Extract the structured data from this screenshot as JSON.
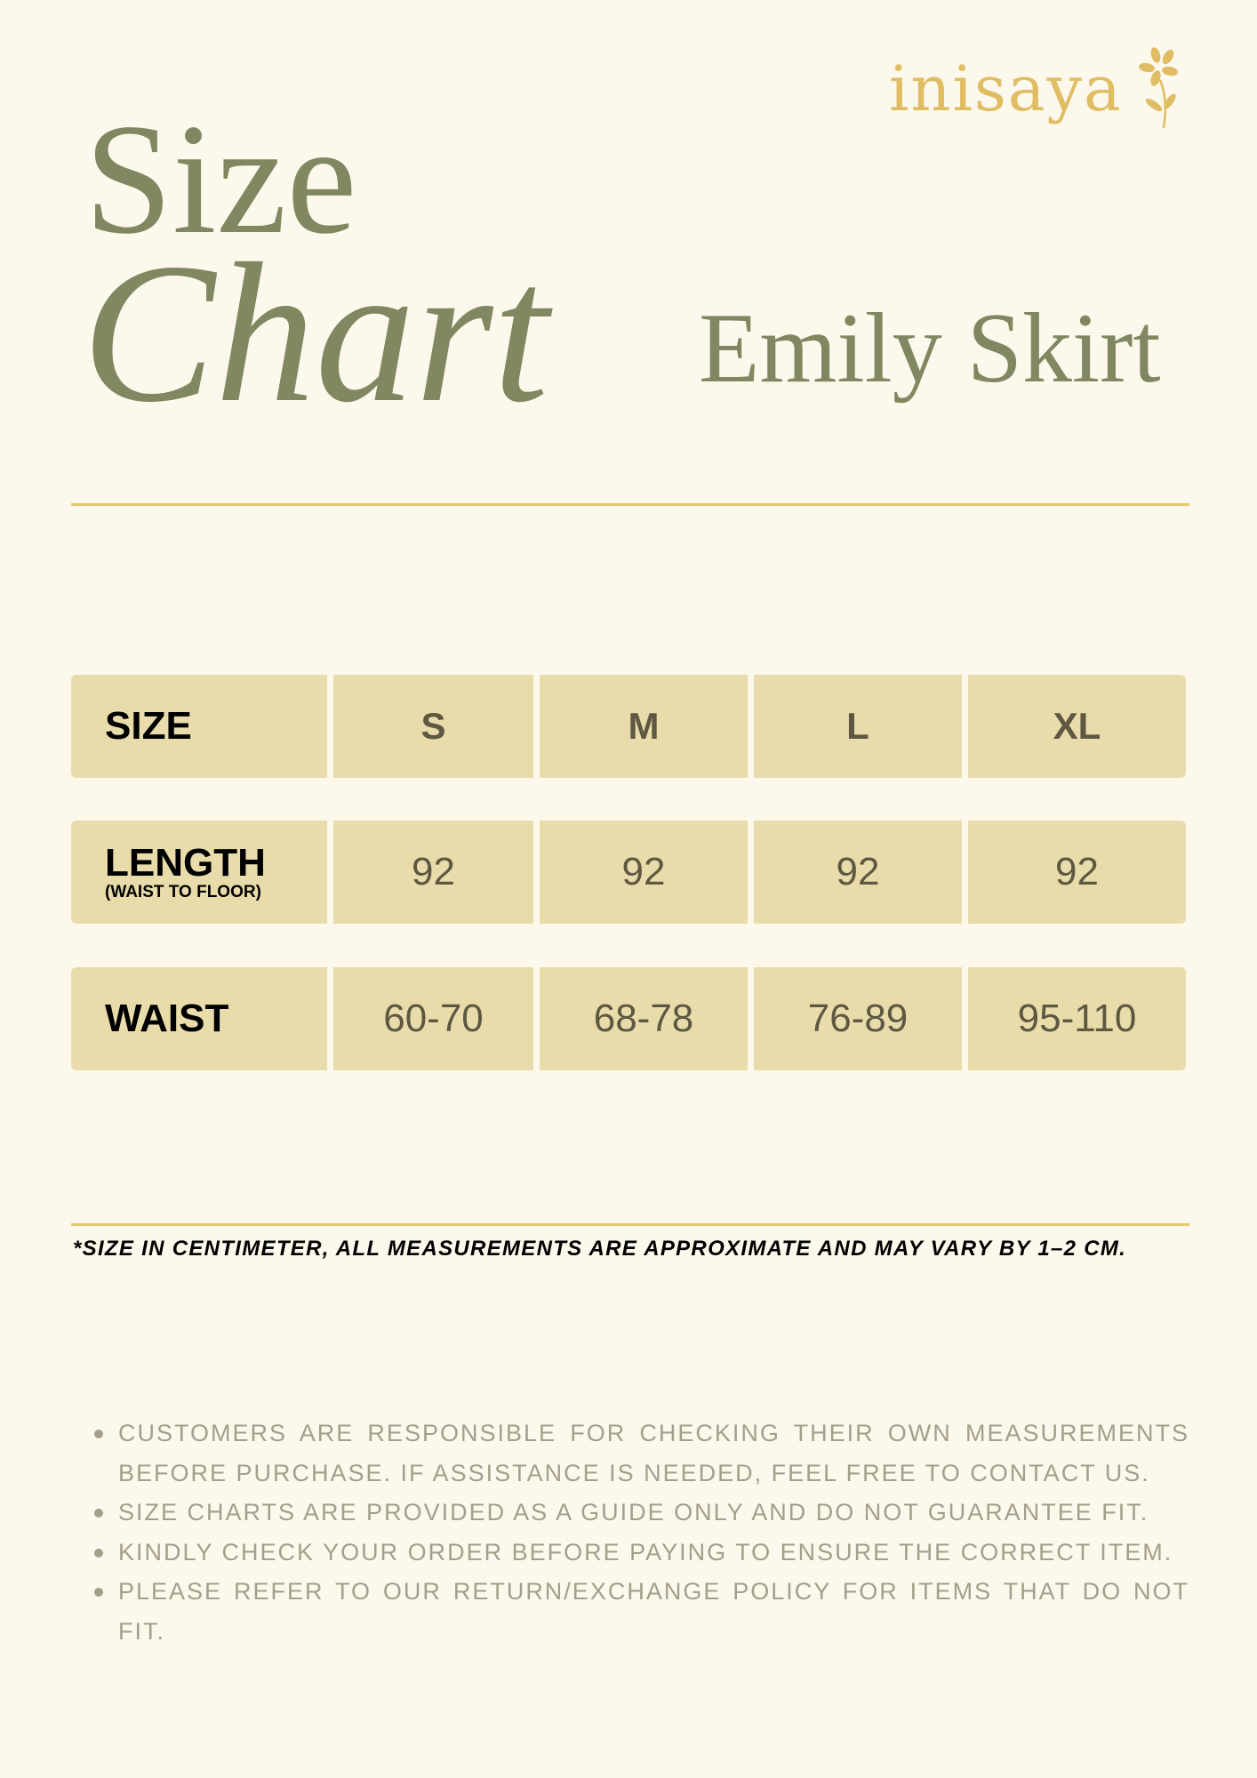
{
  "brand": {
    "logo_text": "inisaya",
    "logo_icon": "flower-icon",
    "color": "#e0bd63"
  },
  "title": {
    "line1": "Size",
    "line2": "Chart",
    "color": "#818760"
  },
  "product_name": "Emily Skirt",
  "table": {
    "header": {
      "label": "SIZE",
      "sizes": [
        "S",
        "M",
        "L",
        "XL"
      ]
    },
    "rows": [
      {
        "label": "LENGTH",
        "sublabel": "(WAIST TO FLOOR)",
        "values": [
          "92",
          "92",
          "92",
          "92"
        ]
      },
      {
        "label": "WAIST",
        "values": [
          "60-70",
          "68-78",
          "76-89",
          "95-110"
        ]
      }
    ],
    "cell_color": "#e9dcab"
  },
  "footnote": "*SIZE IN CENTIMETER, ALL MEASUREMENTS ARE APPROXIMATE AND MAY VARY BY 1–2 CM.",
  "notes": [
    "CUSTOMERS ARE RESPONSIBLE FOR CHECKING THEIR OWN MEASUREMENTS BEFORE PURCHASE. IF ASSISTANCE IS NEEDED, FEEL FREE TO CONTACT US.",
    "SIZE CHARTS ARE PROVIDED AS A GUIDE ONLY AND DO NOT GUARANTEE FIT.",
    "KINDLY CHECK YOUR ORDER BEFORE PAYING TO ENSURE THE CORRECT ITEM.",
    "PLEASE REFER TO OUR RETURN/EXCHANGE POLICY FOR ITEMS THAT DO NOT FIT."
  ]
}
